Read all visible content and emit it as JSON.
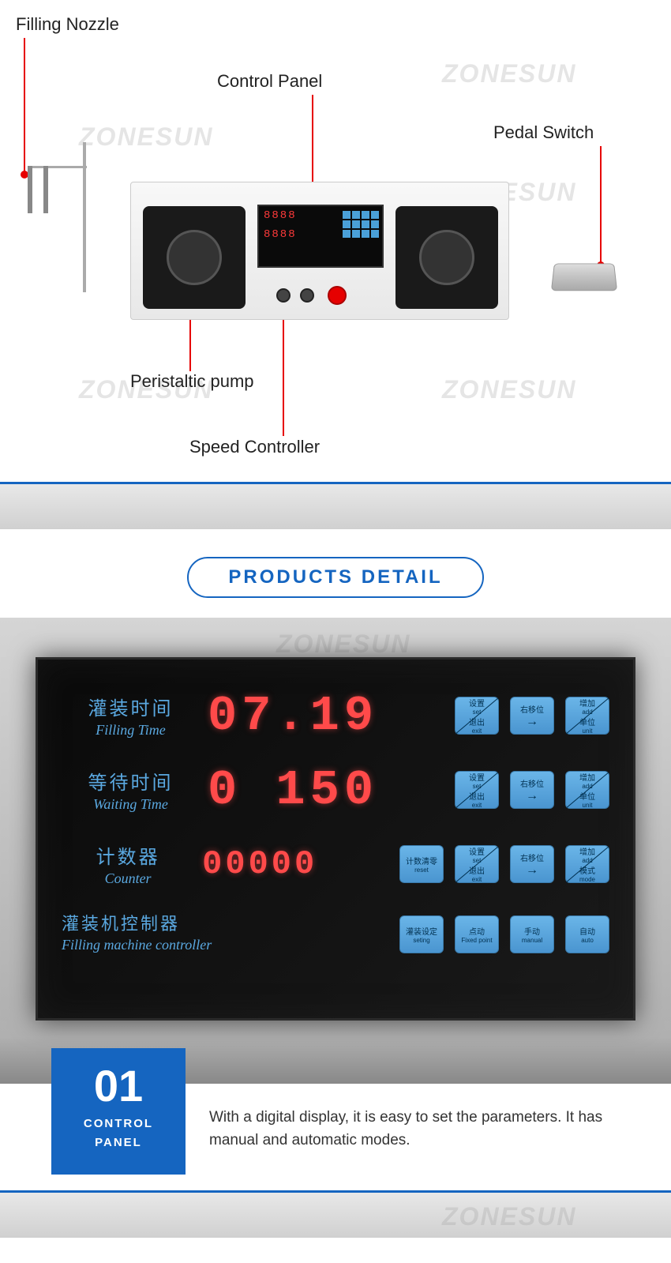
{
  "watermark": "ZONESUN",
  "diagram": {
    "labels": {
      "filling_nozzle": "Filling Nozzle",
      "control_panel": "Control Panel",
      "pedal_switch": "Pedal Switch",
      "peristaltic_pump": "Peristaltic pump",
      "speed_controller": "Speed Controller"
    },
    "mini_display_1": "8888",
    "mini_display_2": "8888"
  },
  "badge": "PRODUCTS DETAIL",
  "panel": {
    "rows": [
      {
        "cn": "灌装时间",
        "en": "Filling Time",
        "value": "07.19"
      },
      {
        "cn": "等待时间",
        "en": "Waiting Time",
        "value": "0 150"
      },
      {
        "cn": "计数器",
        "en": "Counter",
        "value": "00000"
      }
    ],
    "footer_cn": "灌装机控制器",
    "footer_en": "Filling machine controller",
    "row1_btns": [
      {
        "cn1": "设置",
        "en1": "set",
        "cn2": "退出",
        "en2": "exit",
        "diag": true
      },
      {
        "cn1": "右移位",
        "en1": "",
        "arrow": true
      },
      {
        "cn1": "增加",
        "en1": "add",
        "cn2": "单位",
        "en2": "unit",
        "diag": true
      }
    ],
    "row2_btns": [
      {
        "cn1": "设置",
        "en1": "set",
        "cn2": "退出",
        "en2": "exit",
        "diag": true
      },
      {
        "cn1": "右移位",
        "en1": "",
        "arrow": true
      },
      {
        "cn1": "增加",
        "en1": "add",
        "cn2": "单位",
        "en2": "unit",
        "diag": true
      }
    ],
    "row3_btns": [
      {
        "cn1": "计数清零",
        "en1": "reset"
      },
      {
        "cn1": "设置",
        "en1": "set",
        "cn2": "退出",
        "en2": "exit",
        "diag": true
      },
      {
        "cn1": "右移位",
        "en1": "",
        "arrow": true
      },
      {
        "cn1": "增加",
        "en1": "add",
        "cn2": "模式",
        "en2": "mode",
        "diag": true
      }
    ],
    "row4_btns": [
      {
        "cn1": "灌装设定",
        "en1": "seting"
      },
      {
        "cn1": "点动",
        "en1": "Fixed point"
      },
      {
        "cn1": "手动",
        "en1": "manual"
      },
      {
        "cn1": "自动",
        "en1": "auto"
      }
    ]
  },
  "desc": {
    "number": "01",
    "title_l1": "CONTROL",
    "title_l2": "PANEL",
    "text": "With a digital display, it is easy to set the parameters. It has manual and automatic modes."
  },
  "colors": {
    "accent_blue": "#1565c0",
    "leader_red": "#e60000",
    "seg_red": "#ff4a4a",
    "btn_blue": "#5aa8e0"
  }
}
